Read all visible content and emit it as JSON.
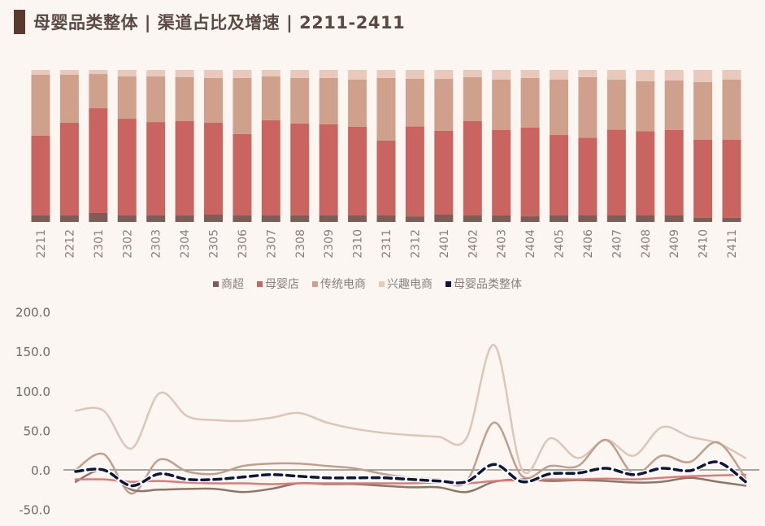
{
  "header": {
    "title": "母婴品类整体 | 渠道占比及增速 | 2211-2411"
  },
  "colors": {
    "商超": "#7d5d55",
    "母婴店": "#c96461",
    "传统电商": "#cfa08c",
    "兴趣电商": "#e8c9bc",
    "母婴品类整体": "#10163a",
    "line_商超": "#8f7468",
    "line_母婴店": "#d77e7a",
    "line_传统电商": "#bfa08e",
    "line_兴趣电商": "#dcc6b8",
    "zero_line": "#8a8a80",
    "background": "#fbf6f1"
  },
  "legend": [
    {
      "label": "商超",
      "key": "商超"
    },
    {
      "label": "母婴店",
      "key": "母婴店"
    },
    {
      "label": "传统电商",
      "key": "传统电商"
    },
    {
      "label": "兴趣电商",
      "key": "兴趣电商"
    },
    {
      "label": "母婴品类整体",
      "key": "母婴品类整体"
    }
  ],
  "chart_data": [
    {
      "type": "bar",
      "stacked": true,
      "percent": true,
      "title": "渠道占比",
      "categories": [
        "2211",
        "2212",
        "2301",
        "2302",
        "2303",
        "2304",
        "2305",
        "2306",
        "2307",
        "2308",
        "2309",
        "2310",
        "2311",
        "2312",
        "2401",
        "2402",
        "2403",
        "2404",
        "2405",
        "2406",
        "2407",
        "2408",
        "2409",
        "2410",
        "2411"
      ],
      "series": [
        {
          "name": "商超",
          "values": [
            4.3,
            4.3,
            5.9,
            4.3,
            4.3,
            4.3,
            4.8,
            4.3,
            4.3,
            4.3,
            4.3,
            4.3,
            4.3,
            3.7,
            4.8,
            4.3,
            4.3,
            3.7,
            4.3,
            4.3,
            4.3,
            4.3,
            4.3,
            2.7,
            2.7
          ]
        },
        {
          "name": "母婴店",
          "values": [
            52.4,
            61.0,
            69.0,
            63.6,
            61.5,
            62.0,
            60.4,
            53.5,
            62.6,
            60.4,
            59.9,
            58.3,
            49.2,
            59.4,
            55.1,
            62.0,
            56.1,
            58.3,
            52.9,
            51.3,
            56.6,
            55.6,
            56.6,
            51.3,
            51.3
          ]
        },
        {
          "name": "传统电商",
          "values": [
            40.1,
            31.5,
            22.5,
            27.8,
            30.0,
            28.9,
            29.4,
            36.9,
            28.9,
            29.9,
            30.5,
            31.0,
            41.2,
            31.5,
            34.2,
            28.9,
            33.1,
            32.6,
            36.4,
            40.1,
            33.1,
            33.1,
            32.6,
            38.0,
            39.6
          ]
        },
        {
          "name": "兴趣电商",
          "values": [
            3.2,
            3.2,
            2.7,
            4.3,
            4.3,
            4.8,
            5.3,
            5.3,
            4.3,
            5.3,
            5.3,
            6.4,
            5.3,
            5.9,
            5.9,
            4.8,
            6.4,
            5.3,
            6.4,
            4.8,
            6.4,
            7.5,
            7.0,
            8.0,
            6.4
          ]
        }
      ],
      "ylim": [
        0,
        100
      ],
      "xlabel": "",
      "ylabel": "",
      "grid": false,
      "legend_position": "bottom"
    },
    {
      "type": "line",
      "title": "增速",
      "categories": [
        "2211",
        "2212",
        "2301",
        "2302",
        "2303",
        "2304",
        "2305",
        "2306",
        "2307",
        "2308",
        "2309",
        "2310",
        "2311",
        "2312",
        "2401",
        "2402",
        "2403",
        "2404",
        "2405",
        "2406",
        "2407",
        "2408",
        "2409",
        "2410",
        "2411"
      ],
      "series": [
        {
          "name": "商超",
          "values": [
            -15,
            0,
            -25,
            -25,
            -24,
            -24,
            -28,
            -24,
            -17,
            -18,
            -18,
            -20,
            -22,
            -22,
            -28,
            -15,
            -12,
            -14,
            -13,
            -14,
            -16,
            -15,
            -10,
            -15,
            -20
          ]
        },
        {
          "name": "母婴店",
          "values": [
            -12,
            -12,
            -15,
            -14,
            -16,
            -17,
            -17,
            -18,
            -17,
            -17,
            -17,
            -17,
            -17,
            -16,
            -17,
            -14,
            -13,
            -12,
            -12,
            -11,
            -12,
            -10,
            -8,
            -7,
            -6
          ]
        },
        {
          "name": "传统电商",
          "values": [
            0,
            20,
            -30,
            13,
            -2,
            -5,
            5,
            8,
            8,
            5,
            2,
            -5,
            -10,
            -12,
            -15,
            60,
            -8,
            5,
            5,
            38,
            -5,
            18,
            10,
            35,
            -10
          ]
        },
        {
          "name": "兴趣电商",
          "values": [
            75,
            75,
            27,
            97,
            68,
            63,
            62,
            66,
            72,
            60,
            52,
            47,
            44,
            42,
            40,
            158,
            0,
            40,
            15,
            38,
            18,
            54,
            42,
            34,
            15
          ]
        },
        {
          "name": "母婴品类整体",
          "values": [
            -2,
            0,
            -20,
            -5,
            -12,
            -12,
            -9,
            -6,
            -8,
            -10,
            -10,
            -10,
            -12,
            -14,
            -15,
            7,
            -15,
            -5,
            -4,
            2,
            -6,
            2,
            -1,
            10,
            -15
          ]
        }
      ],
      "ylim": [
        -50,
        200
      ],
      "yticks": [
        "200.0",
        "150.0",
        "100.0",
        "50.0",
        "0.0",
        "-50.0"
      ],
      "xlabel": "",
      "ylabel": "",
      "grid": false,
      "legend_position": "shared"
    }
  ]
}
